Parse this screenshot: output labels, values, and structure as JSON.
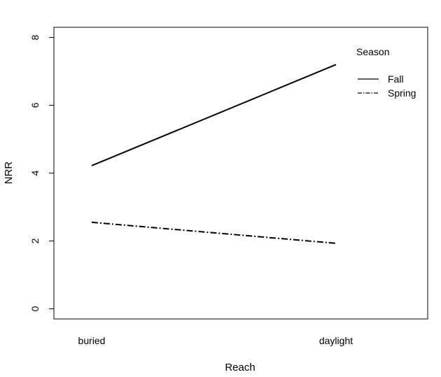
{
  "chart_data": {
    "type": "line",
    "title": "",
    "xlabel": "Reach",
    "ylabel": "NRR",
    "categories": [
      "buried",
      "daylight"
    ],
    "yticks": [
      0,
      2,
      4,
      6,
      8
    ],
    "ylim": [
      -0.3,
      8.3
    ],
    "grid": false,
    "legend": {
      "title": "Season",
      "placement": "top-right"
    },
    "series": [
      {
        "name": "Fall",
        "values": [
          4.22,
          7.2
        ],
        "style": "solid",
        "color": "#000000"
      },
      {
        "name": "Spring",
        "values": [
          2.55,
          1.93
        ],
        "style": "dashdot",
        "color": "#000000"
      }
    ]
  }
}
